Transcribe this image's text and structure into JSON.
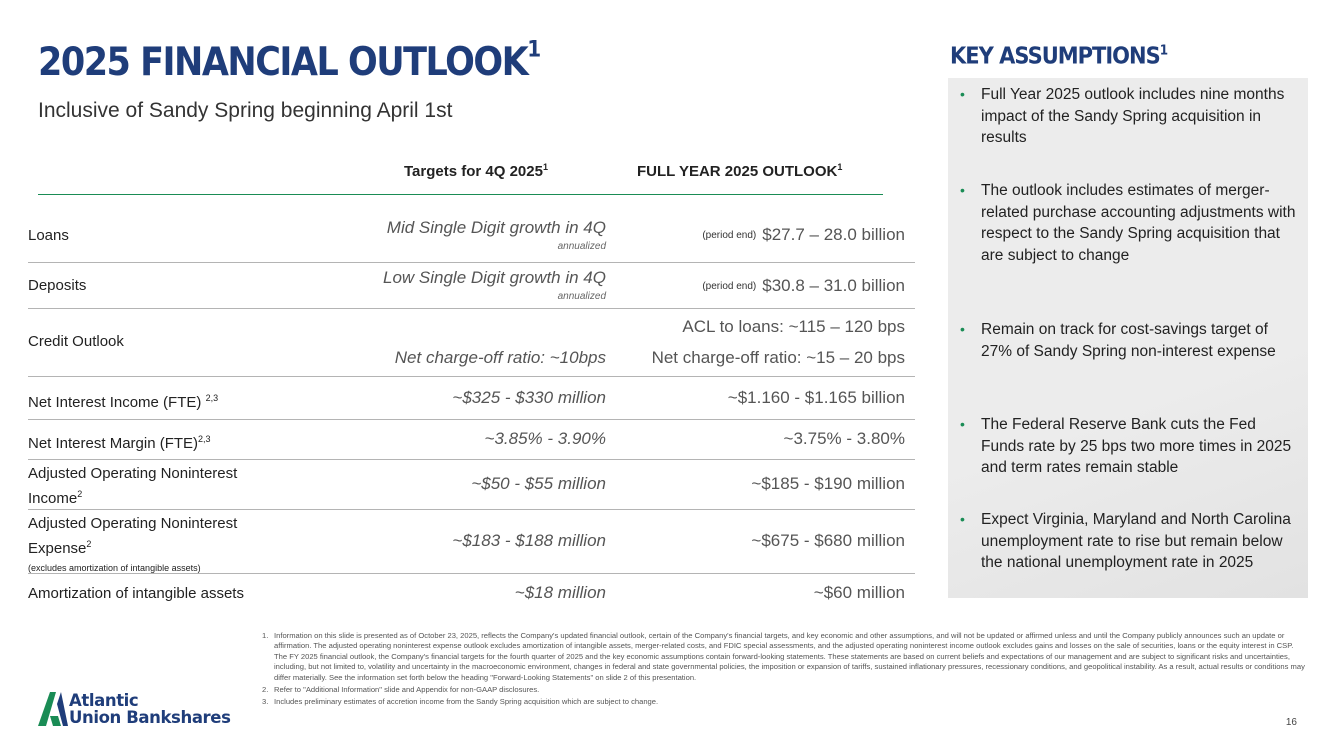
{
  "header": {
    "title": "2025 FINANCIAL OUTLOOK",
    "title_sup": "1",
    "subtitle": "Inclusive of Sandy Spring beginning April 1st"
  },
  "table": {
    "col_target": "Targets for 4Q 2025",
    "col_target_sup": "1",
    "col_fy": "FULL YEAR 2025 OUTLOOK",
    "col_fy_sup": "1",
    "rows": [
      {
        "label": "Loans",
        "target": "Mid Single Digit growth in 4Q",
        "target_sub": "annualized",
        "fy_prefix": "(period end)",
        "fy": "$27.7 – 28.0 billion"
      },
      {
        "label": "Deposits",
        "target": "Low Single Digit growth in 4Q",
        "target_sub": "annualized",
        "fy_prefix": "(period end)",
        "fy": "$30.8 – 31.0 billion"
      },
      {
        "label": "Credit Outlook",
        "fy_line1": "ACL to loans:  ~115 – 120 bps",
        "target": "Net charge-off ratio: ~10bps",
        "fy": "Net charge-off ratio: ~15 – 20 bps"
      },
      {
        "label": "Net Interest Income (FTE)",
        "label_sup": "2,3",
        "target": "~$325 - $330 million",
        "fy": "~$1.160 - $1.165 billion"
      },
      {
        "label": "Net Interest Margin (FTE)",
        "label_sup": "2,3",
        "target": "~3.85% - 3.90%",
        "fy": "~3.75% - 3.80%"
      },
      {
        "label_line1": "Adjusted Operating Noninterest",
        "label_line2": "Income",
        "label_sup": "2",
        "target": "~$50 - $55 million",
        "fy": "~$185 - $190 million"
      },
      {
        "label_line1": "Adjusted Operating Noninterest",
        "label_line2": "Expense",
        "label_sup": "2",
        "label_note": "(excludes amortization of intangible assets)",
        "target": "~$183 - $188 million",
        "fy": "~$675 - $680 million"
      },
      {
        "label": "Amortization of intangible assets",
        "target": "~$18 million",
        "fy": "~$60 million"
      }
    ]
  },
  "assumptions": {
    "title": "KEY ASSUMPTIONS",
    "title_sup": "1",
    "bullets": [
      "Full Year 2025 outlook includes nine months impact of the Sandy Spring acquisition in results",
      "The outlook includes estimates of merger-related purchase accounting adjustments with respect to the Sandy Spring acquisition that are subject to change",
      "Remain on track for cost-savings target of 27% of Sandy Spring non-interest expense",
      "The Federal Reserve Bank cuts the Fed Funds rate by 25 bps two more times in 2025 and term rates remain stable",
      "Expect Virginia, Maryland and North Carolina unemployment rate to rise but remain below the national unemployment rate in 2025"
    ]
  },
  "footnotes": [
    {
      "num": "1.",
      "text": "Information on this slide is presented as of October 23, 2025, reflects the Company's updated financial outlook, certain of the Company's financial targets, and key economic and other assumptions, and will not be updated or affirmed unless and until the Company publicly announces such an update or affirmation. The adjusted operating noninterest expense outlook excludes amortization of intangible assets, merger-related costs, and FDIC special assessments, and the adjusted operating noninterest income outlook excludes gains and losses on the sale of securities, loans or the equity interest in CSP.  The FY 2025 financial outlook, the Company's financial targets for the fourth quarter of 2025 and the key economic assumptions contain forward-looking statements. These statements are based on current beliefs and expectations of our management and are subject to significant risks and uncertainties, including, but not limited to, volatility and uncertainty in the macroeconomic environment, changes in federal and state governmental policies, the imposition or expansion of tariffs, sustained inflationary pressures, recessionary conditions, and geopolitical instability.  As a result, actual results or conditions may differ materially.  See the information set forth below the heading \"Forward-Looking Statements\" on slide 2 of this presentation."
    },
    {
      "num": "2.",
      "text": "Refer to \"Additional Information\" slide and Appendix for non-GAAP disclosures."
    },
    {
      "num": "3.",
      "text": "Includes preliminary estimates of accretion income from the Sandy Spring acquisition which are subject to change."
    }
  ],
  "logo": {
    "line1": "Atlantic",
    "line2": "Union Bankshares"
  },
  "page_number": "16",
  "colors": {
    "brand_navy": "#1f3d7a",
    "brand_green": "#1a8c55",
    "panel_gray": "#ececec"
  }
}
